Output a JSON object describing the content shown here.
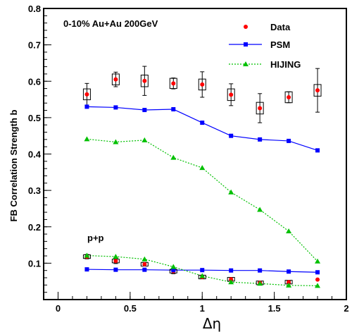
{
  "chart_data": {
    "type": "line",
    "xlabel": "Δη",
    "ylabel": "FB Correlation Strength b",
    "xlim": [
      -0.1,
      2.0
    ],
    "ylim": [
      0.0,
      0.8
    ],
    "xticks": [
      "0",
      "0.5",
      "1",
      "1.5",
      "2"
    ],
    "yticks": [
      "0.1",
      "0.2",
      "0.3",
      "0.4",
      "0.5",
      "0.6",
      "0.7",
      "0.8"
    ],
    "annotations": {
      "system": "0-10% Au+Au 200GeV",
      "pp": "p+p"
    },
    "legend_position": "top-right",
    "x": [
      0.2,
      0.4,
      0.6,
      0.8,
      1.0,
      1.2,
      1.4,
      1.6,
      1.8
    ],
    "series": [
      {
        "name": "Data",
        "color": "#ff0000",
        "marker": "circle",
        "values": [
          0.564,
          0.605,
          0.601,
          0.594,
          0.591,
          0.563,
          0.526,
          0.556,
          0.575
        ],
        "stat_err": [
          0.03,
          0.02,
          0.04,
          0.015,
          0.035,
          0.03,
          0.04,
          0.015,
          0.06
        ],
        "sys_err": [
          0.015,
          0.015,
          0.016,
          0.014,
          0.015,
          0.016,
          0.016,
          0.015,
          0.016
        ]
      },
      {
        "name": "PSM",
        "color": "#0000ff",
        "marker": "square",
        "line": "solid",
        "values": [
          0.53,
          0.528,
          0.521,
          0.523,
          0.486,
          0.45,
          0.44,
          0.436,
          0.41
        ]
      },
      {
        "name": "HIJING",
        "color": "#00c000",
        "marker": "triangle",
        "line": "dotted",
        "values": [
          0.441,
          0.433,
          0.438,
          0.39,
          0.362,
          0.295,
          0.247,
          0.188,
          0.105
        ]
      }
    ],
    "pp_series": [
      {
        "of": "Data",
        "values": [
          0.118,
          0.106,
          0.097,
          0.078,
          0.062,
          0.056,
          0.046,
          0.048,
          0.055
        ],
        "stat_err": [
          0.006,
          0.007,
          0.005,
          0.007,
          0.005,
          0.005,
          0.004,
          0.004,
          0.0
        ],
        "sys_err": [
          0.005,
          0.005,
          0.005,
          0.005,
          0.005,
          0.005,
          0.005,
          0.005,
          0.0
        ]
      },
      {
        "of": "PSM",
        "values": [
          0.083,
          0.082,
          0.082,
          0.081,
          0.081,
          0.08,
          0.08,
          0.077,
          0.075
        ]
      },
      {
        "of": "HIJING",
        "values": [
          0.121,
          0.118,
          0.111,
          0.09,
          0.065,
          0.048,
          0.044,
          0.039,
          0.038
        ]
      }
    ]
  }
}
